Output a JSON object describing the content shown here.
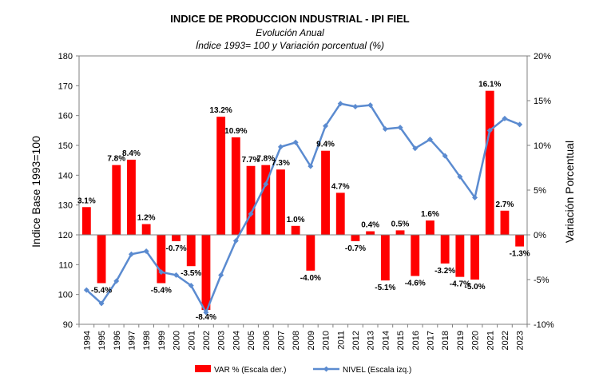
{
  "chart_data": {
    "type": "bar+line",
    "title": "INDICE DE PRODUCCION INDUSTRIAL - IPI FIEL",
    "subtitle_1": "Evolución Anual",
    "subtitle_2": "Índice 1993= 100 y Variación porcentual (%)",
    "y_left_label": "Indice Base 1993=100",
    "y_right_label": "Variación Porcentual",
    "y_left_lim": [
      90,
      180
    ],
    "y_left_ticks": [
      "90",
      "100",
      "110",
      "120",
      "130",
      "140",
      "150",
      "160",
      "170",
      "180"
    ],
    "y_right_lim": [
      -10,
      20
    ],
    "y_right_ticks": [
      "-10%",
      "-5%",
      "0%",
      "5%",
      "10%",
      "15%",
      "20%"
    ],
    "categories": [
      "1994",
      "1995",
      "1996",
      "1997",
      "1998",
      "1999",
      "2000",
      "2001",
      "2002",
      "2003",
      "2004",
      "2005",
      "2006",
      "2007",
      "2008",
      "2009",
      "2010",
      "2011",
      "2012",
      "2013",
      "2014",
      "2015",
      "2016",
      "2017",
      "2018",
      "2019",
      "2020",
      "2021",
      "2022",
      "2023"
    ],
    "series": [
      {
        "name": "VAR % (Escala der.)",
        "kind": "bar",
        "axis": "right",
        "color": "#ff0000",
        "values": [
          3.1,
          -5.4,
          7.8,
          8.4,
          1.2,
          -5.4,
          -0.7,
          -3.5,
          -8.4,
          13.2,
          10.9,
          7.7,
          7.8,
          7.3,
          1.0,
          -4.0,
          9.4,
          4.7,
          -0.7,
          0.4,
          -5.1,
          0.5,
          -4.6,
          1.6,
          -3.2,
          -4.7,
          -5.0,
          16.1,
          2.7,
          -1.3
        ],
        "labels": [
          "3.1%",
          "-5.4%",
          "7.8%",
          "8.4%",
          "1.2%",
          "-5.4%",
          "-0.7%",
          "-3.5%",
          "-8.4%",
          "13.2%",
          "10.9%",
          "7.7%",
          "7.8%",
          "7.3%",
          "1.0%",
          "-4.0%",
          "9.4%",
          "4.7%",
          "-0.7%",
          "0.4%",
          "-5.1%",
          "0.5%",
          "-4.6%",
          "1.6%",
          "-3.2%",
          "-4.7%",
          "-5.0%",
          "16.1%",
          "2.7%",
          "-1.3%"
        ]
      },
      {
        "name": "NIVEL (Escala izq.)",
        "kind": "line",
        "axis": "left",
        "color": "#5b8bd0",
        "values": [
          101.5,
          97.0,
          104.5,
          113.5,
          114.5,
          107.5,
          106.5,
          103.0,
          94.0,
          106.5,
          118.0,
          127.0,
          137.0,
          149.5,
          151.0,
          143.0,
          156.5,
          164.0,
          163.0,
          163.5,
          155.5,
          156.0,
          149.0,
          152.0,
          146.5,
          139.5,
          132.5,
          155.0,
          159.0,
          157.0
        ]
      }
    ],
    "legend_position": "bottom",
    "grid": false
  }
}
